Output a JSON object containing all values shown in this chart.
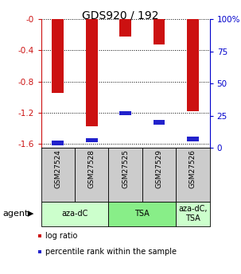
{
  "title": "GDS920 / 192",
  "samples": [
    "GSM27524",
    "GSM27528",
    "GSM27525",
    "GSM27529",
    "GSM27526"
  ],
  "log_ratio": [
    -0.94,
    -1.37,
    -0.22,
    -0.32,
    -1.18
  ],
  "percentile_rank": [
    0.04,
    0.06,
    0.27,
    0.2,
    0.07
  ],
  "ylim_left": [
    -1.65,
    0.0
  ],
  "ylim_right": [
    0,
    100
  ],
  "yticks_left": [
    -1.6,
    -1.2,
    -0.8,
    -0.4,
    0.0
  ],
  "ytick_labels_left": [
    "-1.6",
    "-1.2",
    "-0.8",
    "-0.4",
    "-0"
  ],
  "yticks_right": [
    0,
    25,
    50,
    75,
    100
  ],
  "ytick_labels_right": [
    "0",
    "25",
    "50",
    "75",
    "100%"
  ],
  "groups": [
    {
      "label": "aza-dC",
      "samples": [
        0,
        1
      ],
      "color": "#ccffcc"
    },
    {
      "label": "TSA",
      "samples": [
        2,
        3
      ],
      "color": "#88ee88"
    },
    {
      "label": "aza-dC,\nTSA",
      "samples": [
        4
      ],
      "color": "#ccffcc"
    }
  ],
  "bar_color": "#cc1111",
  "pct_color": "#2222cc",
  "bar_width": 0.35,
  "agent_label": "agent",
  "legend_log_ratio": "log ratio",
  "legend_pct": "percentile rank within the sample",
  "bg_color": "#ffffff",
  "plot_bg": "#ffffff",
  "left_axis_color": "#cc1111",
  "right_axis_color": "#0000cc",
  "sample_bg": "#cccccc"
}
